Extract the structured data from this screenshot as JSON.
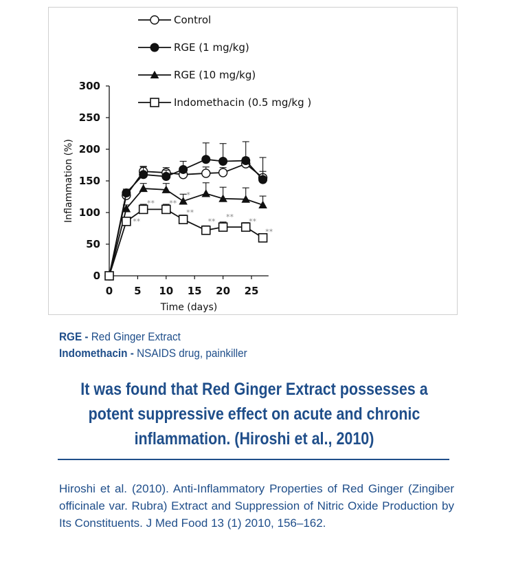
{
  "chart_data": {
    "type": "line",
    "xlabel": "Time (days)",
    "ylabel": "Inflammation (%)",
    "xlim": [
      0,
      28
    ],
    "ylim": [
      0,
      300
    ],
    "xticks": [
      0,
      5,
      10,
      15,
      20,
      25
    ],
    "yticks": [
      0,
      50,
      100,
      150,
      200,
      250,
      300
    ],
    "legend_placement": "top-left",
    "grid": false,
    "series": [
      {
        "name": "Control",
        "marker": "circle-open",
        "x": [
          0,
          3,
          6,
          10,
          13,
          17,
          20,
          24,
          27
        ],
        "y": [
          0,
          127,
          165,
          163,
          160,
          162,
          163,
          177,
          155
        ],
        "err": [
          0,
          6,
          8,
          8,
          8,
          10,
          8,
          10,
          10
        ]
      },
      {
        "name": "RGE (1 mg/kg)",
        "marker": "circle-filled",
        "x": [
          0,
          3,
          6,
          10,
          13,
          17,
          20,
          24,
          27
        ],
        "y": [
          0,
          131,
          160,
          157,
          168,
          184,
          181,
          182,
          152
        ],
        "err": [
          0,
          6,
          12,
          10,
          13,
          26,
          28,
          30,
          35
        ]
      },
      {
        "name": "RGE (10 mg/kg)",
        "marker": "triangle-filled",
        "x": [
          0,
          3,
          6,
          10,
          13,
          17,
          20,
          24,
          27
        ],
        "y": [
          0,
          106,
          138,
          136,
          118,
          130,
          122,
          121,
          112
        ],
        "err": [
          0,
          6,
          8,
          10,
          11,
          17,
          18,
          18,
          14
        ]
      },
      {
        "name": "Indomethacin (0.5 mg/kg )",
        "marker": "square-open",
        "x": [
          0,
          3,
          6,
          10,
          13,
          17,
          20,
          24,
          27
        ],
        "y": [
          0,
          86,
          105,
          105,
          89,
          72,
          77,
          77,
          60
        ],
        "err": [
          0,
          5,
          8,
          8,
          7,
          7,
          8,
          7,
          5
        ]
      }
    ],
    "annotations": [
      {
        "text": "**",
        "x": 4.8,
        "y": 82
      },
      {
        "text": "**",
        "x": 7.3,
        "y": 111
      },
      {
        "text": "**",
        "x": 11.2,
        "y": 111
      },
      {
        "text": "*",
        "x": 13.9,
        "y": 124
      },
      {
        "text": "**",
        "x": 14.2,
        "y": 96
      },
      {
        "text": "**",
        "x": 18.0,
        "y": 82
      },
      {
        "text": "**",
        "x": 21.2,
        "y": 89
      },
      {
        "text": "**",
        "x": 25.2,
        "y": 82
      },
      {
        "text": "**",
        "x": 28.1,
        "y": 66
      }
    ]
  },
  "definitions": [
    {
      "term": "RGE - ",
      "desc": "Red Ginger Extract"
    },
    {
      "term": "Indomethacin - ",
      "desc": "NSAIDS drug, painkiller"
    }
  ],
  "headline": "It was found that Red Ginger Extract possesses a potent suppressive effect on acute and chronic inflammation. (Hiroshi et al., 2010)",
  "citation": "Hiroshi et al. (2010). Anti-Inflammatory Properties of Red Ginger (Zingiber officinale var. Rubra) Extract and Suppression of Nitric Oxide Production by Its Constituents. J Med Food 13 (1) 2010, 156–162.",
  "colors": {
    "text_blue": "#1f4e8a",
    "plot_ink": "#111111",
    "sig_gray": "#888888"
  }
}
